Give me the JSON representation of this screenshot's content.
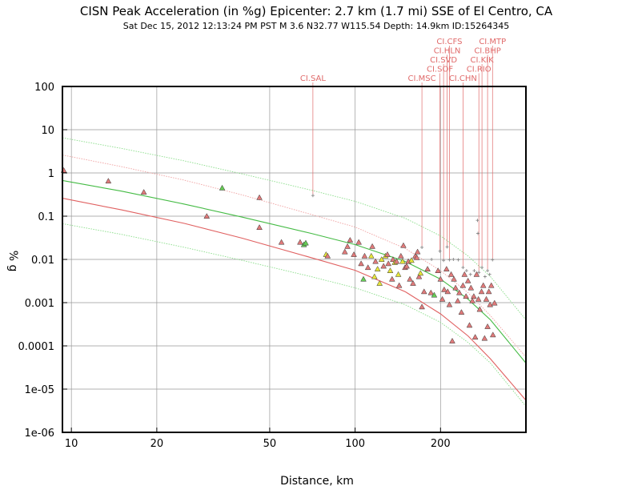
{
  "chart_data": {
    "type": "scatter",
    "title": "CISN Peak Acceleration (in %g) Epicenter: 2.7 km (1.7 mi) SSE of El Centro, CA",
    "subtitle": "Sat Dec 15, 2012 12:13:24 PM PST   M 3.6   N32.77 W115.54   Depth: 14.9km   ID:15264345",
    "xlabel": "Distance, km",
    "ylabel": "% g",
    "x_scale": "log",
    "y_scale": "log",
    "xlim": [
      9.3,
      400
    ],
    "ylim": [
      1e-06,
      100
    ],
    "grid": true,
    "x_ticks": [
      {
        "v": 10,
        "label": "10"
      },
      {
        "v": 20,
        "label": "20"
      },
      {
        "v": 50,
        "label": "50"
      },
      {
        "v": 100,
        "label": "100"
      },
      {
        "v": 200,
        "label": "200"
      }
    ],
    "y_ticks": [
      {
        "v": 100,
        "label": "100"
      },
      {
        "v": 10,
        "label": "10"
      },
      {
        "v": 1,
        "label": "1"
      },
      {
        "v": 0.1,
        "label": "0.1"
      },
      {
        "v": 0.01,
        "label": "0.01"
      },
      {
        "v": 0.001,
        "label": "0.001"
      },
      {
        "v": 0.0001,
        "label": "0.0001"
      },
      {
        "v": 1e-05,
        "label": "1e-05"
      },
      {
        "v": 1e-06,
        "label": "1e-06"
      }
    ],
    "colors": {
      "red_marker": "#e07a7a",
      "green_marker": "#66cc55",
      "yellow_marker": "#e6e63a",
      "red_curve": "#e06060",
      "green_curve": "#44bb44",
      "green_dotted": "#88dd88",
      "red_dotted": "#f0a0a0",
      "station_label": "#e06a6a",
      "cross": "#888888",
      "grid": "#999999"
    },
    "curves": [
      {
        "style": "green",
        "points": [
          [
            9.3,
            0.67
          ],
          [
            15,
            0.38
          ],
          [
            25,
            0.19
          ],
          [
            40,
            0.095
          ],
          [
            70,
            0.04
          ],
          [
            100,
            0.022
          ],
          [
            150,
            0.009
          ],
          [
            200,
            0.0035
          ],
          [
            250,
            0.0012
          ],
          [
            300,
            0.0004
          ],
          [
            400,
            4e-05
          ]
        ]
      },
      {
        "style": "green-dotted",
        "points": [
          [
            9.3,
            6.5
          ],
          [
            15,
            3.7
          ],
          [
            25,
            1.9
          ],
          [
            40,
            0.95
          ],
          [
            70,
            0.4
          ],
          [
            100,
            0.22
          ],
          [
            150,
            0.09
          ],
          [
            200,
            0.035
          ],
          [
            250,
            0.012
          ],
          [
            300,
            0.004
          ],
          [
            400,
            0.0004
          ]
        ]
      },
      {
        "style": "green-dotted",
        "points": [
          [
            9.3,
            0.067
          ],
          [
            15,
            0.038
          ],
          [
            25,
            0.019
          ],
          [
            40,
            0.0095
          ],
          [
            70,
            0.004
          ],
          [
            100,
            0.0022
          ],
          [
            150,
            0.0009
          ],
          [
            200,
            0.00035
          ],
          [
            250,
            0.00012
          ],
          [
            300,
            4e-05
          ],
          [
            400,
            4e-06
          ]
        ]
      },
      {
        "style": "red",
        "points": [
          [
            9.3,
            0.26
          ],
          [
            15,
            0.14
          ],
          [
            25,
            0.068
          ],
          [
            40,
            0.031
          ],
          [
            70,
            0.011
          ],
          [
            100,
            0.0056
          ],
          [
            150,
            0.0018
          ],
          [
            200,
            0.00055
          ],
          [
            250,
            0.00017
          ],
          [
            300,
            5e-05
          ],
          [
            400,
            5.5e-06
          ]
        ]
      },
      {
        "style": "red-dotted",
        "points": [
          [
            9.3,
            2.6
          ],
          [
            15,
            1.4
          ],
          [
            25,
            0.68
          ],
          [
            40,
            0.31
          ],
          [
            70,
            0.11
          ],
          [
            100,
            0.056
          ],
          [
            150,
            0.018
          ],
          [
            200,
            0.0055
          ],
          [
            250,
            0.0017
          ],
          [
            300,
            0.0005
          ],
          [
            400,
            5.5e-05
          ]
        ]
      }
    ],
    "markers": [
      {
        "x": 9.4,
        "y": 1.15,
        "c": "r"
      },
      {
        "x": 13.5,
        "y": 0.65,
        "c": "r"
      },
      {
        "x": 18,
        "y": 0.36,
        "c": "r"
      },
      {
        "x": 30,
        "y": 0.1,
        "c": "r"
      },
      {
        "x": 34,
        "y": 0.45,
        "c": "g"
      },
      {
        "x": 46,
        "y": 0.27,
        "c": "r"
      },
      {
        "x": 46,
        "y": 0.055,
        "c": "r"
      },
      {
        "x": 55,
        "y": 0.025,
        "c": "r"
      },
      {
        "x": 64,
        "y": 0.025,
        "c": "r"
      },
      {
        "x": 66,
        "y": 0.022,
        "c": "g"
      },
      {
        "x": 67,
        "y": 0.024,
        "c": "g"
      },
      {
        "x": 79,
        "y": 0.013,
        "c": "y"
      },
      {
        "x": 80,
        "y": 0.012,
        "c": "r"
      },
      {
        "x": 92,
        "y": 0.015,
        "c": "r"
      },
      {
        "x": 94,
        "y": 0.02,
        "c": "r"
      },
      {
        "x": 96,
        "y": 0.028,
        "c": "r"
      },
      {
        "x": 99,
        "y": 0.013,
        "c": "r"
      },
      {
        "x": 103,
        "y": 0.025,
        "c": "r"
      },
      {
        "x": 105,
        "y": 0.008,
        "c": "r"
      },
      {
        "x": 107,
        "y": 0.0035,
        "c": "g"
      },
      {
        "x": 108,
        "y": 0.012,
        "c": "r"
      },
      {
        "x": 111,
        "y": 0.0065,
        "c": "r"
      },
      {
        "x": 114,
        "y": 0.012,
        "c": "y"
      },
      {
        "x": 115,
        "y": 0.02,
        "c": "r"
      },
      {
        "x": 117,
        "y": 0.004,
        "c": "y"
      },
      {
        "x": 118,
        "y": 0.009,
        "c": "r"
      },
      {
        "x": 120,
        "y": 0.006,
        "c": "y"
      },
      {
        "x": 122,
        "y": 0.0028,
        "c": "y"
      },
      {
        "x": 124,
        "y": 0.01,
        "c": "y"
      },
      {
        "x": 126,
        "y": 0.007,
        "c": "r"
      },
      {
        "x": 128,
        "y": 0.012,
        "c": "y"
      },
      {
        "x": 130,
        "y": 0.013,
        "c": "r"
      },
      {
        "x": 131,
        "y": 0.008,
        "c": "r"
      },
      {
        "x": 133,
        "y": 0.0055,
        "c": "y"
      },
      {
        "x": 135,
        "y": 0.0035,
        "c": "r"
      },
      {
        "x": 136,
        "y": 0.01,
        "c": "r"
      },
      {
        "x": 138,
        "y": 0.0085,
        "c": "y"
      },
      {
        "x": 140,
        "y": 0.009,
        "c": "r"
      },
      {
        "x": 142,
        "y": 0.0045,
        "c": "y"
      },
      {
        "x": 143,
        "y": 0.0025,
        "c": "r"
      },
      {
        "x": 145,
        "y": 0.012,
        "c": "r"
      },
      {
        "x": 147,
        "y": 0.009,
        "c": "y"
      },
      {
        "x": 148,
        "y": 0.021,
        "c": "r"
      },
      {
        "x": 150,
        "y": 0.0065,
        "c": "r"
      },
      {
        "x": 152,
        "y": 0.007,
        "c": "r"
      },
      {
        "x": 154,
        "y": 0.009,
        "c": "r"
      },
      {
        "x": 156,
        "y": 0.0035,
        "c": "r"
      },
      {
        "x": 158,
        "y": 0.0095,
        "c": "y"
      },
      {
        "x": 160,
        "y": 0.0028,
        "c": "r"
      },
      {
        "x": 163,
        "y": 0.012,
        "c": "r"
      },
      {
        "x": 165,
        "y": 0.011,
        "c": "r"
      },
      {
        "x": 166,
        "y": 0.015,
        "c": "r"
      },
      {
        "x": 168,
        "y": 0.004,
        "c": "r"
      },
      {
        "x": 170,
        "y": 0.0048,
        "c": "y"
      },
      {
        "x": 172,
        "y": 0.0008,
        "c": "r"
      },
      {
        "x": 175,
        "y": 0.0018,
        "c": "r"
      },
      {
        "x": 180,
        "y": 0.006,
        "c": "r"
      },
      {
        "x": 185,
        "y": 0.0017,
        "c": "r"
      },
      {
        "x": 190,
        "y": 0.0015,
        "c": "g"
      },
      {
        "x": 196,
        "y": 0.0055,
        "c": "r"
      },
      {
        "x": 200,
        "y": 0.0035,
        "c": "r"
      },
      {
        "x": 203,
        "y": 0.0012,
        "c": "r"
      },
      {
        "x": 206,
        "y": 0.002,
        "c": "r"
      },
      {
        "x": 210,
        "y": 0.006,
        "c": "r"
      },
      {
        "x": 212,
        "y": 0.0018,
        "c": "r"
      },
      {
        "x": 215,
        "y": 0.0009,
        "c": "r"
      },
      {
        "x": 218,
        "y": 0.0045,
        "c": "r"
      },
      {
        "x": 220,
        "y": 0.00013,
        "c": "r"
      },
      {
        "x": 223,
        "y": 0.0035,
        "c": "r"
      },
      {
        "x": 226,
        "y": 0.0022,
        "c": "r"
      },
      {
        "x": 230,
        "y": 0.0011,
        "c": "r"
      },
      {
        "x": 233,
        "y": 0.0017,
        "c": "r"
      },
      {
        "x": 237,
        "y": 0.0006,
        "c": "r"
      },
      {
        "x": 240,
        "y": 0.0025,
        "c": "r"
      },
      {
        "x": 243,
        "y": 0.0045,
        "c": "r"
      },
      {
        "x": 246,
        "y": 0.0014,
        "c": "r"
      },
      {
        "x": 250,
        "y": 0.0032,
        "c": "r"
      },
      {
        "x": 253,
        "y": 0.0003,
        "c": "r"
      },
      {
        "x": 256,
        "y": 0.0022,
        "c": "r"
      },
      {
        "x": 259,
        "y": 0.0011,
        "c": "r"
      },
      {
        "x": 262,
        "y": 0.0014,
        "c": "r"
      },
      {
        "x": 265,
        "y": 0.00016,
        "c": "r"
      },
      {
        "x": 268,
        "y": 0.0045,
        "c": "r"
      },
      {
        "x": 272,
        "y": 0.0012,
        "c": "r"
      },
      {
        "x": 275,
        "y": 0.0007,
        "c": "r"
      },
      {
        "x": 279,
        "y": 0.0018,
        "c": "r"
      },
      {
        "x": 283,
        "y": 0.0025,
        "c": "r"
      },
      {
        "x": 286,
        "y": 0.00015,
        "c": "r"
      },
      {
        "x": 290,
        "y": 0.0012,
        "c": "r"
      },
      {
        "x": 293,
        "y": 0.00028,
        "c": "r"
      },
      {
        "x": 296,
        "y": 0.0018,
        "c": "r"
      },
      {
        "x": 299,
        "y": 0.0009,
        "c": "r"
      },
      {
        "x": 302,
        "y": 0.0025,
        "c": "r"
      },
      {
        "x": 306,
        "y": 0.00018,
        "c": "r"
      },
      {
        "x": 310,
        "y": 0.00098,
        "c": "r"
      }
    ],
    "crosses": [
      {
        "x": 71,
        "y": 0.3
      },
      {
        "x": 172,
        "y": 0.019
      },
      {
        "x": 186,
        "y": 0.01
      },
      {
        "x": 199,
        "y": 0.0155
      },
      {
        "x": 205,
        "y": 0.0095
      },
      {
        "x": 211,
        "y": 0.0195
      },
      {
        "x": 215,
        "y": 0.0098
      },
      {
        "x": 222,
        "y": 0.01
      },
      {
        "x": 231,
        "y": 0.0098
      },
      {
        "x": 240,
        "y": 0.0065
      },
      {
        "x": 247,
        "y": 0.0055
      },
      {
        "x": 255,
        "y": 0.0045
      },
      {
        "x": 263,
        "y": 0.0055
      },
      {
        "x": 270,
        "y": 0.08
      },
      {
        "x": 271,
        "y": 0.04
      },
      {
        "x": 273,
        "y": 0.005
      },
      {
        "x": 280,
        "y": 0.0065
      },
      {
        "x": 287,
        "y": 0.004
      },
      {
        "x": 293,
        "y": 0.0055
      },
      {
        "x": 298,
        "y": 0.0045
      },
      {
        "x": 305,
        "y": 0.0098
      }
    ],
    "stations": [
      {
        "name": "CI.SAL",
        "x": 71,
        "y": 0.3,
        "row": 0
      },
      {
        "name": "CI.MSC",
        "x": 172,
        "y": 0.019,
        "row": 0
      },
      {
        "name": "CI.CHN",
        "x": 240,
        "y": 0.0065,
        "row": 0
      },
      {
        "name": "CI.SOF",
        "x": 199,
        "y": 0.0155,
        "row": 1
      },
      {
        "name": "CI.RIO",
        "x": 273,
        "y": 0.005,
        "row": 1
      },
      {
        "name": "CI.SVD",
        "x": 205,
        "y": 0.0095,
        "row": 2
      },
      {
        "name": "CI.KIK",
        "x": 280,
        "y": 0.0065,
        "row": 2
      },
      {
        "name": "CI.HLN",
        "x": 211,
        "y": 0.0195,
        "row": 3
      },
      {
        "name": "CI.BHP",
        "x": 293,
        "y": 0.0055,
        "row": 3
      },
      {
        "name": "CI.CFS",
        "x": 215,
        "y": 0.0098,
        "row": 4
      },
      {
        "name": "CI.MTP",
        "x": 305,
        "y": 0.0098,
        "row": 4
      }
    ]
  }
}
